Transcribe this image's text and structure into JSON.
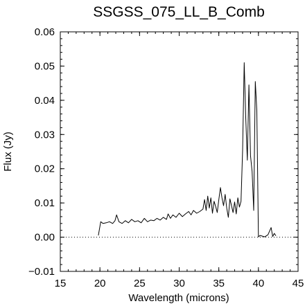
{
  "chart_data": {
    "type": "line",
    "title": "SSGSS_075_LL_B_Comb",
    "xlabel": "Wavelength (microns)",
    "ylabel": "Flux (Jy)",
    "xlim": [
      15,
      45
    ],
    "ylim": [
      -0.01,
      0.06
    ],
    "xticks": [
      15,
      20,
      25,
      30,
      35,
      40,
      45
    ],
    "xtick_labels": [
      "15",
      "20",
      "25",
      "30",
      "35",
      "40",
      "45"
    ],
    "yticks": [
      -0.01,
      0.0,
      0.01,
      0.02,
      0.03,
      0.04,
      0.05,
      0.06
    ],
    "ytick_labels": [
      "−0.01",
      "0.00",
      "0.01",
      "0.02",
      "0.03",
      "0.04",
      "0.05",
      "0.06"
    ],
    "grid": false,
    "reference_line": {
      "y": 0.0,
      "style": "dotted"
    },
    "series": [
      {
        "color": "#000000",
        "x": [
          19.8,
          20.1,
          20.4,
          20.8,
          21.2,
          21.6,
          21.9,
          22.1,
          22.4,
          22.8,
          23.2,
          23.6,
          24.0,
          24.4,
          24.8,
          25.2,
          25.6,
          26.0,
          26.4,
          26.8,
          27.2,
          27.6,
          28.0,
          28.4,
          28.6,
          28.9,
          29.2,
          29.6,
          30.0,
          30.4,
          30.8,
          31.2,
          31.5,
          31.8,
          32.2,
          32.6,
          33.0,
          33.2,
          33.4,
          33.6,
          33.8,
          34.0,
          34.2,
          34.4,
          34.6,
          34.8,
          35.0,
          35.2,
          35.4,
          35.6,
          35.8,
          36.0,
          36.2,
          36.4,
          36.6,
          36.8,
          37.0,
          37.2,
          37.4,
          37.6,
          37.8,
          38.0,
          38.2,
          38.4,
          38.6,
          38.8,
          39.0,
          39.2,
          39.4,
          39.6,
          39.8,
          40.0,
          40.2,
          40.5,
          40.8,
          41.2,
          41.6,
          41.8,
          42.0,
          42.2
        ],
        "y": [
          0.0005,
          0.0045,
          0.004,
          0.0042,
          0.0045,
          0.004,
          0.0048,
          0.0065,
          0.0045,
          0.004,
          0.0048,
          0.0042,
          0.0052,
          0.0045,
          0.0048,
          0.0042,
          0.0055,
          0.0045,
          0.005,
          0.0048,
          0.0055,
          0.005,
          0.0058,
          0.0052,
          0.0068,
          0.0055,
          0.0065,
          0.0058,
          0.007,
          0.006,
          0.0068,
          0.0075,
          0.0065,
          0.0078,
          0.007,
          0.0075,
          0.0082,
          0.011,
          0.0078,
          0.012,
          0.0085,
          0.0115,
          0.007,
          0.0105,
          0.009,
          0.0072,
          0.011,
          0.0145,
          0.0115,
          0.0092,
          0.0125,
          0.0085,
          0.0058,
          0.0112,
          0.0092,
          0.0072,
          0.0103,
          0.0068,
          0.0115,
          0.0088,
          0.0105,
          0.0255,
          0.051,
          0.035,
          0.0225,
          0.0445,
          0.0238,
          0.0192,
          0.0078,
          0.0455,
          0.037,
          0.0001,
          0.0005,
          0.0003,
          0.0001,
          0.0007,
          0.0028,
          0.0002,
          0.0011,
          0.0004
        ]
      }
    ]
  }
}
